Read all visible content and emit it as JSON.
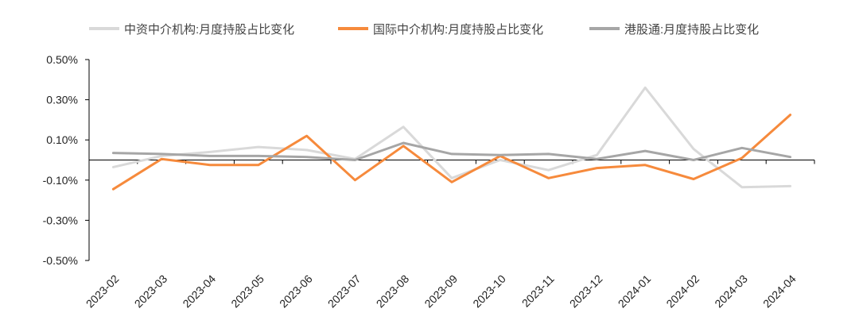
{
  "chart_data": {
    "type": "line",
    "title": "",
    "xlabel": "",
    "ylabel": "",
    "categories": [
      "2023-02",
      "2023-03",
      "2023-04",
      "2023-05",
      "2023-06",
      "2023-07",
      "2023-08",
      "2023-09",
      "2023-10",
      "2023-11",
      "2023-12",
      "2024-01",
      "2024-02",
      "2024-03",
      "2024-04"
    ],
    "ylim": [
      -0.5,
      0.5
    ],
    "yticks": [
      0.5,
      0.3,
      0.1,
      -0.1,
      -0.3,
      -0.5
    ],
    "ytick_labels": [
      "0.50%",
      "0.30%",
      "0.10%",
      "-0.10%",
      "-0.30%",
      "-0.50%"
    ],
    "grid": false,
    "legend_position": "top",
    "series": [
      {
        "name": "中资中介机构:月度持股占比变化",
        "color": "#d9d9d9",
        "values": [
          -0.035,
          0.02,
          0.04,
          0.065,
          0.05,
          0.005,
          0.165,
          -0.09,
          0.0,
          -0.05,
          0.025,
          0.36,
          0.055,
          -0.135,
          -0.13
        ]
      },
      {
        "name": "国际中介机构:月度持股占比变化",
        "color": "#f68a3c",
        "values": [
          -0.145,
          0.005,
          -0.025,
          -0.025,
          0.12,
          -0.1,
          0.07,
          -0.11,
          0.02,
          -0.09,
          -0.04,
          -0.025,
          -0.095,
          0.01,
          0.225
        ]
      },
      {
        "name": "港股通:月度持股占比变化",
        "color": "#a6a6a6",
        "values": [
          0.035,
          0.03,
          0.02,
          0.02,
          0.015,
          0.0,
          0.085,
          0.03,
          0.025,
          0.03,
          0.005,
          0.045,
          0.0,
          0.06,
          0.015
        ]
      }
    ]
  }
}
